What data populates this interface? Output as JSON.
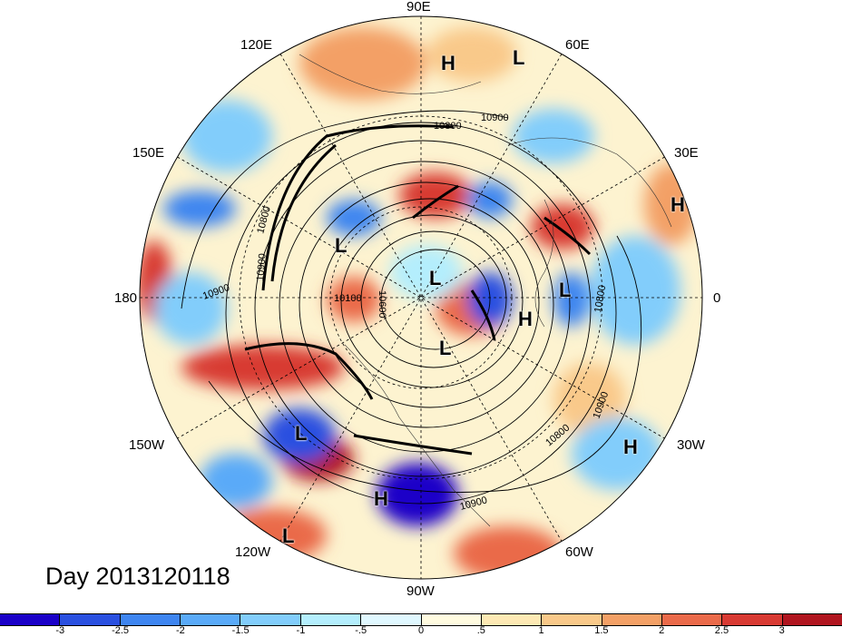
{
  "title": "Day 2013120118",
  "projection": "polar-stereographic",
  "longitude_labels": [
    "90E",
    "60E",
    "30E",
    "0",
    "30W",
    "60W",
    "90W",
    "120W",
    "150W",
    "180",
    "150E",
    "120E"
  ],
  "contour_labels": [
    "10900",
    "10800",
    "10900",
    "10800",
    "10900",
    "10800",
    "10900",
    "10600",
    "10100",
    "10800",
    "10900"
  ],
  "pressure_centers": [
    {
      "label": "H",
      "name": "high-1"
    },
    {
      "label": "L",
      "name": "low-1"
    },
    {
      "label": "H",
      "name": "high-2"
    },
    {
      "label": "L",
      "name": "low-2"
    },
    {
      "label": "L",
      "name": "low-3"
    },
    {
      "label": "L",
      "name": "low-4"
    },
    {
      "label": "H",
      "name": "high-3"
    },
    {
      "label": "L",
      "name": "low-5"
    },
    {
      "label": "L",
      "name": "low-6"
    },
    {
      "label": "H",
      "name": "high-4"
    },
    {
      "label": "H",
      "name": "high-5"
    },
    {
      "label": "L",
      "name": "low-7"
    }
  ],
  "colorbar": {
    "colors": [
      "#1a00c8",
      "#2a50e0",
      "#3e85f0",
      "#5aaaf8",
      "#82cdfb",
      "#b4eefd",
      "#e0f8ff",
      "#fffbe0",
      "#fde9b4",
      "#f9c98a",
      "#f3a066",
      "#ea6a4a",
      "#d83a33",
      "#b0151f"
    ],
    "tick_labels": [
      "-3",
      "-2.5",
      "-2",
      "-1.5",
      "-1",
      "-.5",
      "0",
      ".5",
      "1",
      "1.5",
      "2",
      "2.5",
      "3"
    ]
  }
}
